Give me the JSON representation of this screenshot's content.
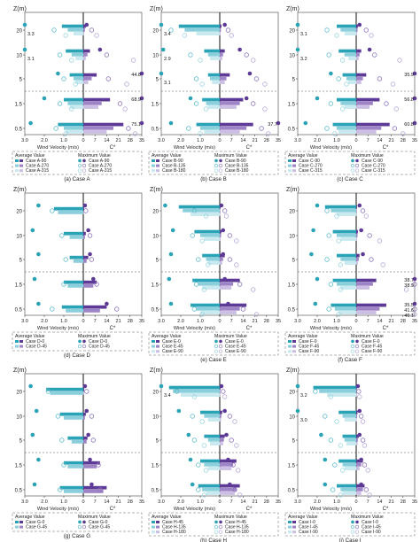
{
  "chart_data": {
    "type": "bar",
    "layout": "3x3 grid of mirrored horizontal bar charts",
    "y_axis_label": "Z(m)",
    "height_levels": [
      "20",
      "10",
      "5",
      "1.5",
      "0.5"
    ],
    "x_left_label": "Wind Velocity (m/s)",
    "x_right_label": "C*",
    "x_left_ticks": [
      "3.0",
      "2.0",
      "1.0",
      "0"
    ],
    "x_right_ticks": [
      "0",
      "7",
      "14",
      "21",
      "28",
      "35"
    ],
    "legend_average_title": "Average Value",
    "legend_maximum_title": "Maximum Value",
    "palette": {
      "avg_colors": [
        "#2aa3b6",
        "#8ccfdc",
        "#c7e9ef",
        "#ddf2f5"
      ],
      "cstar_colors": [
        "#5d3a96",
        "#9e83c6",
        "#cbbde3",
        "#e2d9ef"
      ],
      "cstar_max_marker_colors": [
        "#5d3a96",
        "#8d73bb",
        "#b9a8d8",
        "#d5cae9"
      ],
      "wind_max_marker_colors": [
        "#2aa3b6",
        "#5fbdcc",
        "#9bd6e0",
        "#c2e6ec"
      ],
      "axis_color": "#222222",
      "dashed_separator": "#555555"
    },
    "panels": [
      {
        "caption": "(a) Case A",
        "series": [
          "Case A-90",
          "Case A-270",
          "Case A-315"
        ],
        "wind_max": [
          [
            3.3,
            1.5,
            0.9
          ],
          [
            3.1,
            1.2,
            0.6
          ],
          [
            1.3,
            1.0,
            0.4
          ],
          [
            2.0,
            1.2,
            0.6
          ],
          [
            2.7,
            1.4,
            0.9
          ]
        ],
        "wind_avg": [
          [
            1.1,
            0.8,
            0.5
          ],
          [
            0.9,
            0.6,
            0.4
          ],
          [
            0.7,
            0.5,
            0.4
          ],
          [
            1.0,
            0.8,
            0.7
          ],
          [
            1.3,
            1.0,
            0.9
          ]
        ],
        "cstar_avg": [
          [
            1.5,
            1.0,
            0.5
          ],
          [
            4.0,
            2.5,
            1.5
          ],
          [
            8.0,
            5.0,
            3.0
          ],
          [
            16.0,
            11.0,
            9.0
          ],
          [
            24.0,
            18.0,
            14.0
          ]
        ],
        "cstar_max": [
          [
            2.0,
            5.0,
            8.0
          ],
          [
            10.0,
            14.0,
            30.0
          ],
          [
            44.8,
            15.0,
            26.0
          ],
          [
            68.9,
            22.0,
            25.0
          ],
          [
            75.1,
            27.0,
            31.0
          ]
        ],
        "value_labels": [
          {
            "row": 0,
            "side": "left",
            "text": "3.3"
          },
          {
            "row": 1,
            "side": "left",
            "text": "3.1"
          },
          {
            "row": 2,
            "side": "right",
            "text": "44.8"
          },
          {
            "row": 3,
            "side": "right",
            "text": "68.9"
          },
          {
            "row": 4,
            "side": "right",
            "text": "75.1"
          }
        ]
      },
      {
        "caption": "(b) Case B",
        "series": [
          "Case B-90",
          "Case B-135",
          "Case B-180"
        ],
        "wind_max": [
          [
            3.4,
            2.5,
            1.8
          ],
          [
            2.9,
            1.5,
            1.0
          ],
          [
            3.1,
            1.2,
            0.9
          ],
          [
            1.5,
            1.2,
            0.7
          ],
          [
            2.5,
            1.6,
            1.0
          ]
        ],
        "wind_avg": [
          [
            2.1,
            1.8,
            1.2
          ],
          [
            0.8,
            0.6,
            0.5
          ],
          [
            0.6,
            0.5,
            0.4
          ],
          [
            0.9,
            0.7,
            0.6
          ],
          [
            1.2,
            1.0,
            0.8
          ]
        ],
        "cstar_avg": [
          [
            1.0,
            0.7,
            0.5
          ],
          [
            3.0,
            2.0,
            1.5
          ],
          [
            6.0,
            4.0,
            3.0
          ],
          [
            14.0,
            12.0,
            10.0
          ],
          [
            20.0,
            16.0,
            12.0
          ]
        ],
        "cstar_max": [
          [
            3.0,
            5.0,
            7.0
          ],
          [
            12.0,
            16.0,
            20.0
          ],
          [
            18.0,
            22.0,
            27.0
          ],
          [
            16.0,
            20.0,
            27.0
          ],
          [
            37.7,
            25.0,
            29.0
          ]
        ],
        "value_labels": [
          {
            "row": 0,
            "side": "left",
            "text": "3.4"
          },
          {
            "row": 1,
            "side": "left",
            "text": "2.9"
          },
          {
            "row": 2,
            "side": "left",
            "text": "3.1"
          },
          {
            "row": 4,
            "side": "right",
            "text": "37.7"
          }
        ]
      },
      {
        "caption": "(c) Case C",
        "series": [
          "Case C-90",
          "Case C-270",
          "Case C-315"
        ],
        "wind_max": [
          [
            3.1,
            1.5,
            1.0
          ],
          [
            3.2,
            1.4,
            0.7
          ],
          [
            1.3,
            0.9,
            0.5
          ],
          [
            2.0,
            1.3,
            0.7
          ],
          [
            2.6,
            1.5,
            1.1
          ]
        ],
        "wind_avg": [
          [
            1.0,
            0.8,
            0.6
          ],
          [
            0.9,
            0.6,
            0.4
          ],
          [
            0.7,
            0.5,
            0.4
          ],
          [
            1.0,
            0.8,
            0.6
          ],
          [
            1.2,
            1.0,
            0.9
          ]
        ],
        "cstar_avg": [
          [
            1.0,
            0.8,
            0.5
          ],
          [
            3.0,
            2.0,
            1.5
          ],
          [
            6.0,
            4.0,
            3.0
          ],
          [
            14.0,
            10.0,
            8.0
          ],
          [
            20.0,
            15.0,
            12.0
          ]
        ],
        "cstar_max": [
          [
            2.0,
            6.0,
            9.0
          ],
          [
            8.0,
            11.0,
            26.0
          ],
          [
            35.9,
            14.0,
            22.0
          ],
          [
            56.8,
            18.0,
            24.0
          ],
          [
            60.8,
            23.0,
            28.0
          ]
        ],
        "value_labels": [
          {
            "row": 0,
            "side": "left",
            "text": "3.1"
          },
          {
            "row": 1,
            "side": "left",
            "text": "3.2"
          },
          {
            "row": 2,
            "side": "right",
            "text": "35.9"
          },
          {
            "row": 3,
            "side": "right",
            "text": "56.8"
          },
          {
            "row": 4,
            "side": "right",
            "text": "60.8"
          }
        ]
      },
      {
        "caption": "(d) Case D",
        "series": [
          "Case D-0",
          "Case D-45"
        ],
        "wind_max": [
          [
            2.3,
            1.6
          ],
          [
            2.6,
            1.1
          ],
          [
            2.3,
            0.9
          ],
          [
            2.5,
            1.0
          ],
          [
            2.3,
            1.6
          ]
        ],
        "wind_avg": [
          [
            1.5,
            1.3
          ],
          [
            1.0,
            0.7
          ],
          [
            0.7,
            0.5
          ],
          [
            1.0,
            0.8
          ],
          [
            1.1,
            0.9
          ]
        ],
        "cstar_avg": [
          [
            0.5,
            0.3
          ],
          [
            1.5,
            1.0
          ],
          [
            3.0,
            2.0
          ],
          [
            8.0,
            6.0
          ],
          [
            14.0,
            10.0
          ]
        ],
        "cstar_max": [
          [
            1.0,
            1.5
          ],
          [
            3.0,
            4.0
          ],
          [
            4.0,
            5.0
          ],
          [
            6.0,
            8.0
          ],
          [
            14.0,
            20.0
          ]
        ],
        "value_labels": []
      },
      {
        "caption": "(e) Case E",
        "series": [
          "Case E-0",
          "Case E-45",
          "Case E-90"
        ],
        "wind_max": [
          [
            2.8,
            1.3,
            0.7
          ],
          [
            2.4,
            1.4,
            0.9
          ],
          [
            2.5,
            1.1,
            0.6
          ],
          [
            2.6,
            1.2,
            0.8
          ],
          [
            2.5,
            1.3,
            0.9
          ]
        ],
        "wind_avg": [
          [
            2.1,
            1.9,
            1.5
          ],
          [
            1.3,
            1.0,
            0.8
          ],
          [
            0.9,
            0.7,
            0.6
          ],
          [
            1.4,
            1.1,
            0.9
          ],
          [
            1.5,
            1.2,
            1.0
          ]
        ],
        "cstar_avg": [
          [
            0.5,
            0.3,
            0.2
          ],
          [
            1.0,
            0.8,
            0.5
          ],
          [
            3.0,
            2.0,
            1.5
          ],
          [
            12.0,
            8.0,
            7.0
          ],
          [
            16.0,
            12.0,
            10.0
          ]
        ],
        "cstar_max": [
          [
            1.0,
            3.0,
            4.0
          ],
          [
            2.0,
            6.0,
            10.0
          ],
          [
            2.0,
            6.0,
            10.0
          ],
          [
            3.0,
            12.0,
            20.0
          ],
          [
            5.0,
            14.0,
            22.0
          ]
        ],
        "value_labels": []
      },
      {
        "caption": "(f) Case F",
        "series": [
          "Case F-0",
          "Case F-45",
          "Case F-90"
        ],
        "wind_max": [
          [
            2.0,
            1.5,
            1.0
          ],
          [
            2.2,
            1.4,
            0.9
          ],
          [
            2.3,
            1.5,
            0.8
          ],
          [
            2.0,
            1.3,
            0.8
          ],
          [
            2.1,
            1.4,
            0.9
          ]
        ],
        "wind_avg": [
          [
            1.6,
            1.3,
            1.0
          ],
          [
            1.2,
            1.0,
            0.8
          ],
          [
            1.0,
            0.8,
            0.6
          ],
          [
            1.2,
            1.0,
            0.8
          ],
          [
            1.3,
            1.1,
            0.9
          ]
        ],
        "cstar_avg": [
          [
            0.5,
            0.3,
            0.2
          ],
          [
            1.0,
            0.8,
            0.5
          ],
          [
            2.0,
            1.5,
            1.0
          ],
          [
            12.0,
            10.0,
            8.0
          ],
          [
            18.0,
            14.0,
            12.0
          ]
        ],
        "cstar_max": [
          [
            2.0,
            4.0,
            6.0
          ],
          [
            3.0,
            8.0,
            14.0
          ],
          [
            4.0,
            9.0,
            16.0
          ],
          [
            38.7,
            38.9,
            30.0
          ],
          [
            35.5,
            41.6,
            46.1
          ]
        ],
        "value_labels": [
          {
            "row": 3,
            "side": "right",
            "text": "38.7"
          },
          {
            "row": 3,
            "side": "right",
            "text": "38.9"
          },
          {
            "row": 4,
            "side": "right",
            "text": "35.5"
          },
          {
            "row": 4,
            "side": "right",
            "text": "41.6"
          },
          {
            "row": 4,
            "side": "right",
            "text": "46.1"
          }
        ]
      },
      {
        "caption": "(g) Case G",
        "series": [
          "Case G-0",
          "Case G-45"
        ],
        "wind_max": [
          [
            2.7,
            1.8
          ],
          [
            2.4,
            1.3
          ],
          [
            2.6,
            1.1
          ],
          [
            2.3,
            1.0
          ],
          [
            2.5,
            1.2
          ]
        ],
        "wind_avg": [
          [
            1.9,
            1.7
          ],
          [
            1.2,
            1.0
          ],
          [
            0.8,
            0.6
          ],
          [
            1.0,
            0.8
          ],
          [
            1.2,
            1.0
          ]
        ],
        "cstar_avg": [
          [
            0.5,
            0.3
          ],
          [
            1.5,
            1.0
          ],
          [
            2.5,
            2.0
          ],
          [
            10.0,
            8.0
          ],
          [
            14.0,
            12.0
          ]
        ],
        "cstar_max": [
          [
            1.0,
            2.0
          ],
          [
            2.0,
            5.0
          ],
          [
            3.0,
            6.0
          ],
          [
            4.0,
            9.0
          ],
          [
            5.0,
            10.0
          ]
        ],
        "value_labels": []
      },
      {
        "caption": "(h) Case H",
        "series": [
          "Case H-45",
          "Case H-135",
          "Case H-180"
        ],
        "wind_max": [
          [
            3.4,
            2.2,
            1.3
          ],
          [
            2.1,
            1.4,
            0.9
          ],
          [
            1.6,
            1.3,
            0.8
          ],
          [
            1.5,
            1.1,
            0.7
          ],
          [
            1.4,
            1.1,
            0.8
          ]
        ],
        "wind_avg": [
          [
            2.6,
            2.4,
            2.0
          ],
          [
            1.0,
            0.8,
            0.6
          ],
          [
            0.8,
            0.6,
            0.5
          ],
          [
            1.0,
            0.8,
            0.6
          ],
          [
            1.1,
            0.9,
            0.7
          ]
        ],
        "cstar_avg": [
          [
            0.5,
            0.3,
            0.2
          ],
          [
            1.5,
            1.0,
            0.8
          ],
          [
            3.0,
            2.5,
            2.0
          ],
          [
            10.0,
            8.0,
            7.0
          ],
          [
            12.0,
            10.0,
            9.0
          ]
        ],
        "cstar_max": [
          [
            1.0,
            2.0,
            3.0
          ],
          [
            3.0,
            6.0,
            9.0
          ],
          [
            4.0,
            7.0,
            10.0
          ],
          [
            5.0,
            8.0,
            11.0
          ],
          [
            6.0,
            9.0,
            12.0
          ]
        ],
        "value_labels": [
          {
            "row": 0,
            "side": "left",
            "text": "3.4"
          }
        ]
      },
      {
        "caption": "(i) Case I",
        "series": [
          "Case I-0",
          "Case I-45",
          "Case I-90"
        ],
        "wind_max": [
          [
            3.2,
            2.1,
            1.3
          ],
          [
            3.0,
            1.6,
            1.0
          ],
          [
            1.8,
            1.3,
            0.8
          ],
          [
            1.6,
            1.1,
            0.7
          ],
          [
            1.6,
            1.2,
            0.8
          ]
        ],
        "wind_avg": [
          [
            2.2,
            1.9,
            1.5
          ],
          [
            0.9,
            0.7,
            0.6
          ],
          [
            0.7,
            0.6,
            0.5
          ],
          [
            0.9,
            0.7,
            0.6
          ],
          [
            1.0,
            0.8,
            0.7
          ]
        ],
        "cstar_avg": [
          [
            0.4,
            0.3,
            0.2
          ],
          [
            0.8,
            0.6,
            0.4
          ],
          [
            1.5,
            1.0,
            0.8
          ],
          [
            4.0,
            3.0,
            2.0
          ],
          [
            5.0,
            4.0,
            3.0
          ]
        ],
        "cstar_max": [
          [
            1.0,
            1.5,
            2.0
          ],
          [
            2.0,
            3.0,
            4.0
          ],
          [
            2.0,
            4.0,
            5.0
          ],
          [
            3.0,
            5.0,
            7.0
          ],
          [
            3.0,
            6.0,
            8.0
          ]
        ],
        "value_labels": [
          {
            "row": 0,
            "side": "left",
            "text": "3.2"
          },
          {
            "row": 1,
            "side": "left",
            "text": "3.0"
          }
        ]
      }
    ]
  }
}
